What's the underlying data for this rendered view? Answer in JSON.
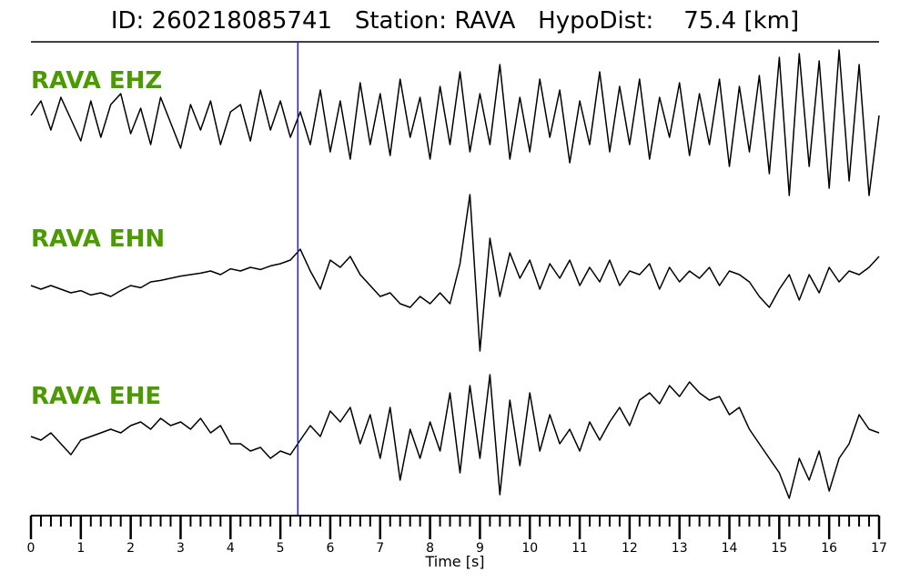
{
  "chart_data": {
    "type": "line",
    "title": "ID: 260218085741   Station: RAVA   HypoDist:    75.4 [km]",
    "xlabel": "Time [s]",
    "xlim": [
      0,
      17
    ],
    "x_ticks": [
      "0",
      "1",
      "2",
      "3",
      "4",
      "5",
      "6",
      "7",
      "8",
      "9",
      "10",
      "11",
      "12",
      "13",
      "14",
      "15",
      "16",
      "17"
    ],
    "x_minor_step": 0.2,
    "sample_step": 0.2,
    "pick_time": 5.35,
    "colors": {
      "trace": "#000000",
      "label": "#4a9a00",
      "pick": "#2222bb"
    },
    "series": [
      {
        "name": "RAVA EHZ",
        "values": [
          0.1,
          0.3,
          -0.1,
          0.35,
          0.05,
          -0.25,
          0.3,
          -0.2,
          0.25,
          0.4,
          -0.15,
          0.2,
          -0.3,
          0.35,
          0.0,
          -0.35,
          0.25,
          -0.1,
          0.3,
          -0.3,
          0.15,
          0.25,
          -0.25,
          0.45,
          -0.1,
          0.3,
          -0.2,
          0.15,
          -0.3,
          0.45,
          -0.4,
          0.3,
          -0.5,
          0.55,
          -0.3,
          0.4,
          -0.45,
          0.6,
          -0.2,
          0.35,
          -0.5,
          0.5,
          -0.3,
          0.7,
          -0.4,
          0.4,
          -0.3,
          0.8,
          -0.5,
          0.35,
          -0.4,
          0.6,
          -0.2,
          0.45,
          -0.55,
          0.3,
          -0.3,
          0.7,
          -0.4,
          0.5,
          -0.3,
          0.6,
          -0.5,
          0.35,
          -0.2,
          0.55,
          -0.45,
          0.4,
          -0.3,
          0.6,
          -0.6,
          0.5,
          -0.4,
          0.65,
          -0.7,
          0.9,
          -1.0,
          0.95,
          -0.6,
          0.85,
          -0.9,
          1.0,
          -0.8,
          0.8,
          -1.0,
          0.1
        ]
      },
      {
        "name": "RAVA EHN",
        "values": [
          -0.05,
          -0.1,
          -0.05,
          -0.1,
          -0.15,
          -0.12,
          -0.18,
          -0.15,
          -0.2,
          -0.12,
          -0.05,
          -0.08,
          0.0,
          0.02,
          0.05,
          0.08,
          0.1,
          0.12,
          0.15,
          0.1,
          0.18,
          0.15,
          0.2,
          0.17,
          0.22,
          0.25,
          0.3,
          0.45,
          0.15,
          -0.1,
          0.3,
          0.2,
          0.35,
          0.1,
          -0.05,
          -0.2,
          -0.15,
          -0.3,
          -0.35,
          -0.2,
          -0.3,
          -0.15,
          -0.3,
          0.25,
          1.2,
          -0.95,
          0.6,
          -0.2,
          0.4,
          0.05,
          0.3,
          -0.1,
          0.25,
          0.05,
          0.3,
          -0.05,
          0.2,
          0.0,
          0.3,
          -0.05,
          0.15,
          0.1,
          0.25,
          -0.1,
          0.2,
          0.0,
          0.15,
          0.05,
          0.2,
          -0.05,
          0.15,
          0.1,
          0.0,
          -0.2,
          -0.35,
          -0.1,
          0.1,
          -0.25,
          0.1,
          -0.15,
          0.2,
          0.0,
          0.15,
          0.1,
          0.2,
          0.35
        ]
      },
      {
        "name": "RAVA EHE",
        "values": [
          0.0,
          -0.05,
          0.05,
          -0.1,
          -0.25,
          -0.05,
          0.0,
          0.05,
          0.1,
          0.05,
          0.15,
          0.2,
          0.1,
          0.25,
          0.15,
          0.2,
          0.1,
          0.25,
          0.05,
          0.15,
          -0.1,
          -0.1,
          -0.2,
          -0.15,
          -0.3,
          -0.2,
          -0.25,
          -0.05,
          0.15,
          0.0,
          0.35,
          0.2,
          0.4,
          -0.1,
          0.3,
          -0.3,
          0.4,
          -0.6,
          0.1,
          -0.3,
          0.2,
          -0.2,
          0.6,
          -0.5,
          0.7,
          -0.3,
          0.85,
          -0.8,
          0.5,
          -0.4,
          0.6,
          -0.2,
          0.3,
          -0.1,
          0.1,
          -0.2,
          0.2,
          -0.05,
          0.2,
          0.4,
          0.15,
          0.5,
          0.6,
          0.45,
          0.7,
          0.55,
          0.75,
          0.6,
          0.5,
          0.55,
          0.3,
          0.4,
          0.1,
          -0.1,
          -0.3,
          -0.5,
          -0.85,
          -0.3,
          -0.6,
          -0.2,
          -0.75,
          -0.3,
          -0.1,
          0.3,
          0.1,
          0.05
        ]
      }
    ]
  }
}
